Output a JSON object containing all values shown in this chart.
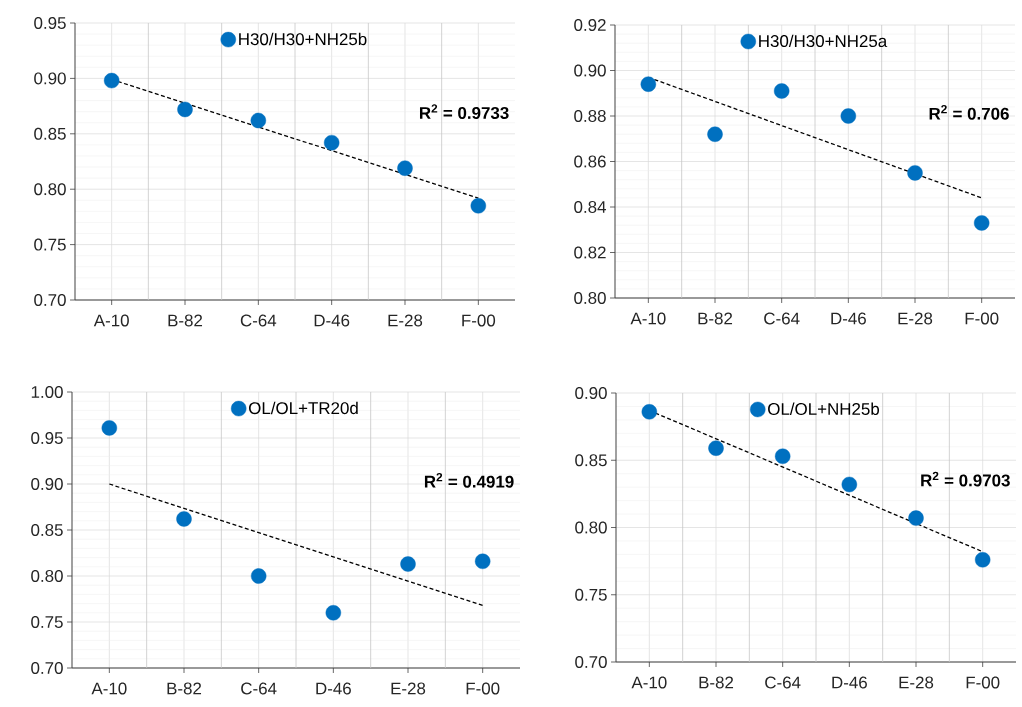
{
  "chart_data": [
    {
      "type": "scatter",
      "categories": [
        "A-10",
        "B-82",
        "C-64",
        "D-46",
        "E-28",
        "F-00"
      ],
      "ylim": [
        0.7,
        0.95
      ],
      "yticks": [
        {
          "value": 0.7,
          "label": "0.70"
        },
        0.75,
        {
          "value": 0.8,
          "label": "0.80"
        },
        0.85,
        {
          "value": 0.9,
          "label": "0.90"
        },
        0.95
      ],
      "grid": true,
      "legend": "top",
      "annotations": [
        "R$^{2}$ = 0.9733"
      ],
      "series": [
        {
          "name": "H30/H30+NH25b",
          "color": "#0070c0",
          "marker": "circle",
          "values": [
            0.898,
            0.872,
            0.862,
            0.842,
            0.819,
            0.785
          ]
        },
        {
          "type": "line",
          "color": "#000000",
          "line_style": "dashed",
          "values": [
            0.899,
            null,
            null,
            null,
            null,
            0.792
          ]
        }
      ]
    },
    {
      "type": "scatter",
      "categories": [
        "A-10",
        "B-82",
        "C-64",
        "D-46",
        "E-28",
        "F-00"
      ],
      "ylim": [
        0.8,
        0.92
      ],
      "yticks": [
        {
          "value": 0.8,
          "label": "0.80"
        },
        0.82,
        0.84,
        0.86,
        0.88,
        {
          "value": 0.9,
          "label": "0.90"
        },
        0.92
      ],
      "grid": true,
      "legend": "top",
      "annotations": [
        "R$^{2}$ = 0.706"
      ],
      "series": [
        {
          "name": "H30/H30+NH25a",
          "color": "#0070c0",
          "marker": "circle",
          "values": [
            0.894,
            0.872,
            0.891,
            0.88,
            0.855,
            0.833
          ]
        },
        {
          "type": "line",
          "color": "#000000",
          "line_style": "dashed",
          "values": [
            0.897,
            null,
            null,
            null,
            null,
            0.844
          ]
        }
      ]
    },
    {
      "type": "scatter",
      "categories": [
        "A-10",
        "B-82",
        "C-64",
        "D-46",
        "E-28",
        "F-00"
      ],
      "ylim": [
        0.7,
        1.0
      ],
      "yticks": [
        {
          "value": 0.7,
          "label": "0.70"
        },
        0.75,
        {
          "value": 0.8,
          "label": "0.80"
        },
        0.85,
        {
          "value": 0.9,
          "label": "0.90"
        },
        0.95,
        {
          "value": 1.0,
          "label": "1.00"
        }
      ],
      "grid": true,
      "legend": "top",
      "annotations": [
        "R$^{2}$ = 0.4919"
      ],
      "series": [
        {
          "name": "OL/OL+TR20d",
          "color": "#0070c0",
          "marker": "circle",
          "values": [
            0.961,
            0.862,
            0.8,
            0.76,
            0.813,
            0.816
          ]
        },
        {
          "type": "line",
          "color": "#000000",
          "line_style": "dashed",
          "values": [
            0.9,
            null,
            null,
            null,
            null,
            0.768
          ]
        }
      ]
    },
    {
      "type": "scatter",
      "categories": [
        "A-10",
        "B-82",
        "C-64",
        "D-46",
        "E-28",
        "F-00"
      ],
      "ylim": [
        0.7,
        0.9
      ],
      "yticks": [
        {
          "value": 0.7,
          "label": "0.70"
        },
        0.75,
        {
          "value": 0.8,
          "label": "0.80"
        },
        0.85,
        {
          "value": 0.9,
          "label": "0.90"
        }
      ],
      "grid": true,
      "legend": "top",
      "annotations": [
        "R$^{2}$ = 0.9703"
      ],
      "series": [
        {
          "name": "OL/OL+NH25b",
          "color": "#0070c0",
          "marker": "circle",
          "values": [
            0.886,
            0.859,
            0.853,
            0.832,
            0.807,
            0.776
          ]
        },
        {
          "type": "line",
          "color": "#000000",
          "line_style": "dashed",
          "values": [
            0.887,
            null,
            null,
            null,
            null,
            0.782
          ]
        }
      ]
    }
  ]
}
